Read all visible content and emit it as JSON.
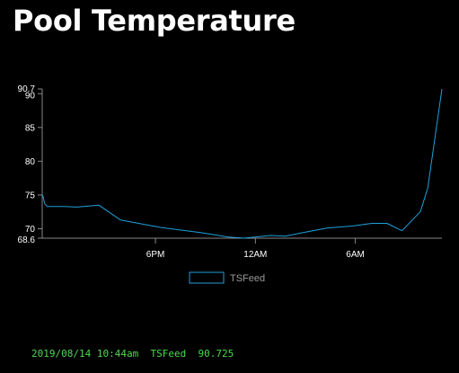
{
  "header": {
    "title": "Pool Temperature"
  },
  "chart_data": {
    "type": "line",
    "title": "",
    "xlabel": "",
    "ylabel": "",
    "ylim": [
      68.6,
      90.7
    ],
    "y_ticks": [
      "68.6",
      "70",
      "75",
      "80",
      "85",
      "90",
      "90.7"
    ],
    "y_tick_values": [
      68.6,
      70,
      75,
      80,
      85,
      90,
      90.7
    ],
    "x_ticks": [
      "6PM",
      "12AM",
      "6AM"
    ],
    "x_tick_values": [
      18,
      24,
      30
    ],
    "x_range_hours": [
      11.2,
      35.2
    ],
    "grid": false,
    "legend": "bottom",
    "series": [
      {
        "name": "TSFeed",
        "color": "#1ea1d9",
        "x_hours": [
          11.2,
          11.25,
          11.35,
          11.5,
          12.5,
          13.3,
          14.6,
          15.9,
          18.3,
          20.8,
          22.3,
          23.3,
          24.9,
          25.8,
          26.8,
          28.3,
          29.8,
          31.0,
          31.9,
          32.8,
          33.9,
          34.35,
          35.2
        ],
        "values": [
          75.0,
          74.8,
          73.7,
          73.3,
          73.3,
          73.2,
          73.5,
          71.3,
          70.2,
          69.4,
          68.8,
          68.6,
          69.0,
          68.9,
          69.4,
          70.1,
          70.4,
          70.8,
          70.8,
          69.7,
          72.5,
          76.0,
          90.7
        ]
      }
    ]
  },
  "status": {
    "datetime": "2019/08/14 10:44am",
    "feed": "TSFeed",
    "value": "90.725"
  }
}
